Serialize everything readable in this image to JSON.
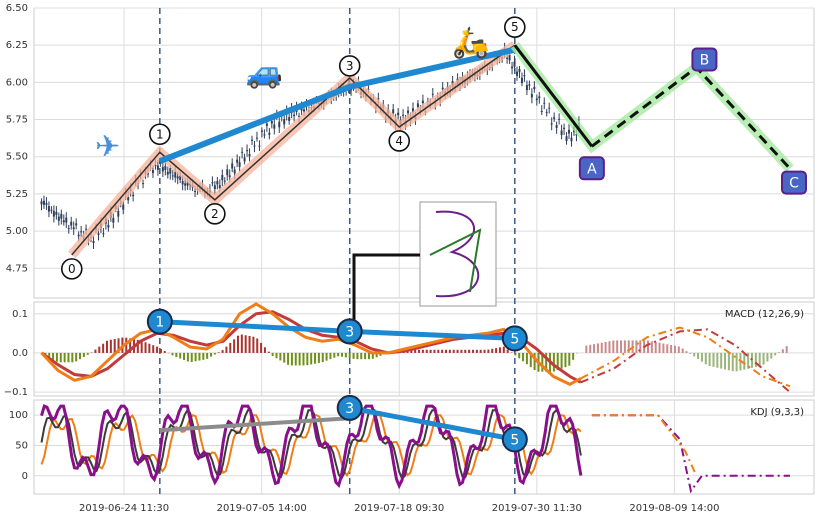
{
  "chart_data": [
    {
      "type": "line",
      "panel": "price",
      "title": "",
      "xlabel": "",
      "ylabel": "",
      "ylim": [
        4.55,
        6.5
      ],
      "yticks": [
        "4.75",
        "5.00",
        "5.25",
        "5.50",
        "5.75",
        "6.00",
        "6.25",
        "6.50"
      ],
      "grid": true,
      "candles_summary": {
        "series": "price candlesticks (OHLC, dense)",
        "close_path": [
          [
            0.0,
            5.2
          ],
          [
            3,
            5.1
          ],
          [
            6,
            5.02
          ],
          [
            9,
            4.95
          ],
          [
            12,
            5.05
          ],
          [
            15,
            5.2
          ],
          [
            18,
            5.35
          ],
          [
            21,
            5.45
          ],
          [
            24,
            5.38
          ],
          [
            27,
            5.3
          ],
          [
            30,
            5.27
          ],
          [
            33,
            5.34
          ],
          [
            36,
            5.47
          ],
          [
            39,
            5.6
          ],
          [
            42,
            5.72
          ],
          [
            45,
            5.78
          ],
          [
            48,
            5.82
          ],
          [
            51,
            5.87
          ],
          [
            54,
            5.94
          ],
          [
            57,
            5.98
          ],
          [
            60,
            5.9
          ],
          [
            63,
            5.78
          ],
          [
            66,
            5.75
          ],
          [
            69,
            5.83
          ],
          [
            72,
            5.9
          ],
          [
            75,
            5.98
          ],
          [
            78,
            6.04
          ],
          [
            81,
            6.1
          ],
          [
            84,
            6.2
          ],
          [
            87,
            6.05
          ],
          [
            90,
            5.9
          ],
          [
            93,
            5.75
          ],
          [
            96,
            5.63
          ],
          [
            98,
            5.7
          ]
        ]
      },
      "wave_points": [
        {
          "label": "0",
          "x": 5.5,
          "y": 4.84
        },
        {
          "label": "1",
          "x": 21.5,
          "y": 5.53
        },
        {
          "label": "2",
          "x": 31.5,
          "y": 5.21
        },
        {
          "label": "3",
          "x": 56.0,
          "y": 6.03
        },
        {
          "label": "4",
          "x": 65.0,
          "y": 5.7
        },
        {
          "label": "5",
          "x": 86.0,
          "y": 6.25
        }
      ],
      "projection_points": [
        {
          "label": "A",
          "x": 100.0,
          "y": 5.57
        },
        {
          "label": "B",
          "x": 119.0,
          "y": 6.1
        },
        {
          "label": "C",
          "x": 136.0,
          "y": 5.42
        }
      ],
      "trend_line": [
        [
          21.5,
          5.47
        ],
        [
          56.0,
          5.97
        ],
        [
          86.0,
          6.22
        ]
      ],
      "icons": [
        "airplane-icon",
        "car-icon",
        "scooter-icon"
      ],
      "inset_label": "harmonic-pattern-thumbnail"
    },
    {
      "type": "line",
      "panel": "macd",
      "title": "MACD (12,26,9)",
      "ylim": [
        -0.11,
        0.13
      ],
      "yticks": [
        "0.1",
        "0.0",
        "−0.1"
      ],
      "grid": true,
      "divergence_points": [
        {
          "label": "1",
          "x": 21.5,
          "y": 0.08
        },
        {
          "label": "3",
          "x": 56.0,
          "y": 0.055
        },
        {
          "label": "5",
          "x": 86.0,
          "y": 0.037
        }
      ],
      "dif": [
        [
          0,
          0.0
        ],
        [
          3,
          -0.045
        ],
        [
          6,
          -0.07
        ],
        [
          9,
          -0.06
        ],
        [
          12,
          -0.02
        ],
        [
          15,
          0.02
        ],
        [
          18,
          0.05
        ],
        [
          21,
          0.06
        ],
        [
          24,
          0.04
        ],
        [
          27,
          0.015
        ],
        [
          30,
          0.01
        ],
        [
          33,
          0.035
        ],
        [
          36,
          0.1
        ],
        [
          39,
          0.125
        ],
        [
          42,
          0.1
        ],
        [
          45,
          0.065
        ],
        [
          48,
          0.04
        ],
        [
          51,
          0.03
        ],
        [
          54,
          0.035
        ],
        [
          57,
          0.02
        ],
        [
          60,
          0.0
        ],
        [
          63,
          0.0
        ],
        [
          66,
          0.01
        ],
        [
          69,
          0.02
        ],
        [
          72,
          0.03
        ],
        [
          75,
          0.04
        ],
        [
          78,
          0.045
        ],
        [
          81,
          0.05
        ],
        [
          84,
          0.06
        ],
        [
          87,
          0.03
        ],
        [
          90,
          -0.02
        ],
        [
          93,
          -0.06
        ],
        [
          96,
          -0.08
        ],
        [
          98,
          -0.065
        ]
      ],
      "dea": [
        [
          0,
          0.0
        ],
        [
          3,
          -0.03
        ],
        [
          6,
          -0.055
        ],
        [
          9,
          -0.06
        ],
        [
          12,
          -0.04
        ],
        [
          15,
          -0.005
        ],
        [
          18,
          0.03
        ],
        [
          21,
          0.05
        ],
        [
          24,
          0.045
        ],
        [
          27,
          0.03
        ],
        [
          30,
          0.02
        ],
        [
          33,
          0.03
        ],
        [
          36,
          0.07
        ],
        [
          39,
          0.1
        ],
        [
          42,
          0.105
        ],
        [
          45,
          0.085
        ],
        [
          48,
          0.06
        ],
        [
          51,
          0.045
        ],
        [
          54,
          0.04
        ],
        [
          57,
          0.03
        ],
        [
          60,
          0.01
        ],
        [
          63,
          0.0
        ],
        [
          66,
          0.005
        ],
        [
          69,
          0.015
        ],
        [
          72,
          0.025
        ],
        [
          75,
          0.035
        ],
        [
          78,
          0.04
        ],
        [
          81,
          0.045
        ],
        [
          84,
          0.05
        ],
        [
          87,
          0.04
        ],
        [
          90,
          0.01
        ],
        [
          93,
          -0.03
        ],
        [
          96,
          -0.06
        ],
        [
          98,
          -0.075
        ]
      ],
      "dif_projection": [
        [
          98,
          -0.065
        ],
        [
          104,
          -0.02
        ],
        [
          110,
          0.04
        ],
        [
          116,
          0.065
        ],
        [
          121,
          0.04
        ],
        [
          126,
          -0.01
        ],
        [
          131,
          -0.06
        ],
        [
          136,
          -0.085
        ]
      ],
      "dea_projection": [
        [
          98,
          -0.075
        ],
        [
          104,
          -0.04
        ],
        [
          110,
          0.02
        ],
        [
          116,
          0.055
        ],
        [
          121,
          0.06
        ],
        [
          126,
          0.02
        ],
        [
          131,
          -0.04
        ],
        [
          136,
          -0.1
        ]
      ]
    },
    {
      "type": "line",
      "panel": "kdj",
      "title": "KDJ (9,3,3)",
      "ylim": [
        -30,
        125
      ],
      "yticks": [
        "100",
        "50",
        "0"
      ],
      "grid": true,
      "divergence_points": [
        {
          "label": "3",
          "x": 56.0,
          "y": 112
        },
        {
          "label": "5",
          "x": 86.0,
          "y": 60
        }
      ],
      "x_tick_labels": [
        {
          "x": 15,
          "label": "2019-06-24 11:30"
        },
        {
          "x": 40,
          "label": "2019-07-05 14:00"
        },
        {
          "x": 65,
          "label": "2019-07-18 09:30"
        },
        {
          "x": 90,
          "label": "2019-07-30 11:30"
        },
        {
          "x": 115,
          "label": "2019-08-09 14:00"
        }
      ],
      "gray_line": [
        [
          21.5,
          75
        ],
        [
          56.0,
          95
        ]
      ],
      "blue_line": [
        [
          56.0,
          112
        ],
        [
          86.0,
          60
        ]
      ]
    }
  ],
  "xlim": [
    -1,
    140
  ],
  "accent_colors": {
    "wave_fill": "#f5b39a",
    "trend": "#1e88d0",
    "dif": "#f07d17",
    "dea": "#c23b3b",
    "k_line": "#3b3b3b",
    "j_line": "#8a0f8a",
    "projection_fill": "#a6e8a0",
    "badge": "#4a66c4"
  }
}
